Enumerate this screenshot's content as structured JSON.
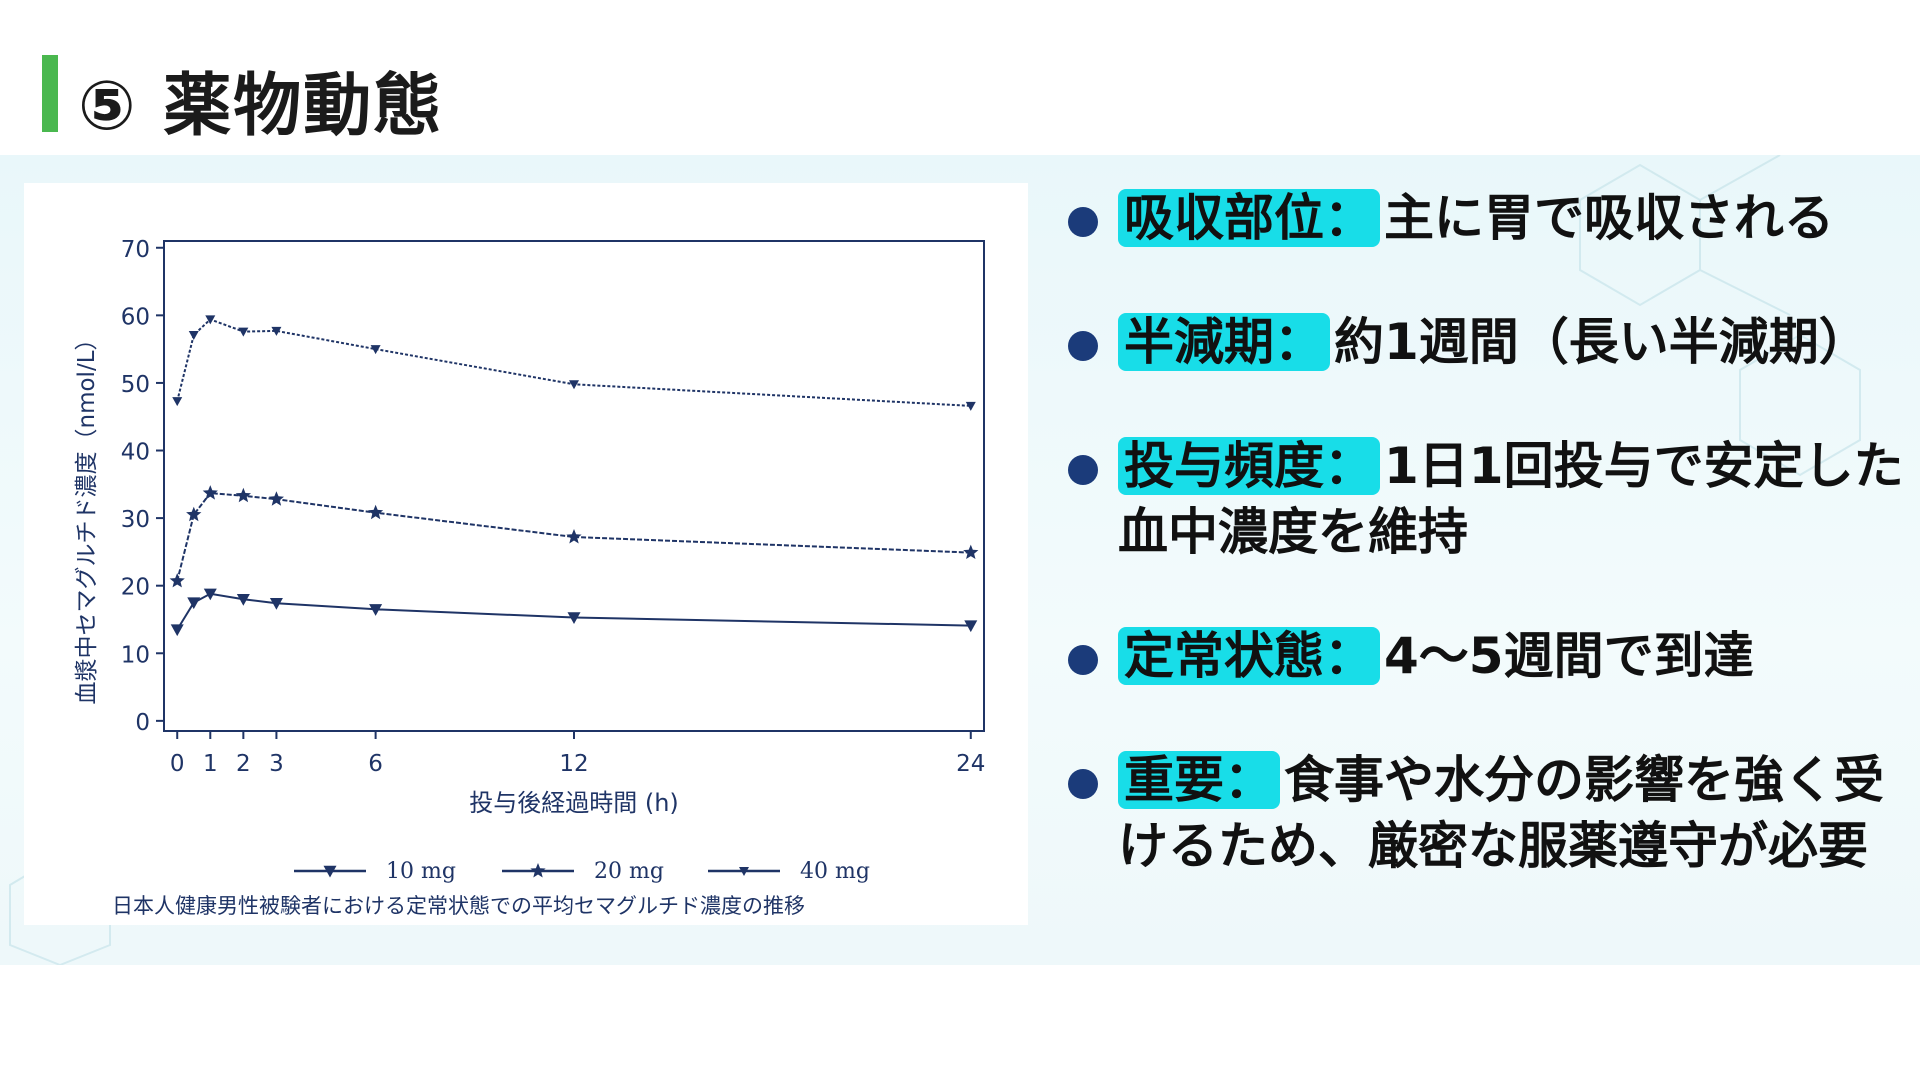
{
  "page": {
    "title": "⑤ 薬物動態"
  },
  "bullets": [
    {
      "label": "吸収部位：",
      "text": "主に胃で吸収される",
      "text2": ""
    },
    {
      "label": "半減期：",
      "text": "約1週間（長い半減期）",
      "text2": ""
    },
    {
      "label": "投与頻度：",
      "text": "1日1回投与で安定した",
      "text2": "血中濃度を維持"
    },
    {
      "label": "定常状態：",
      "text": "4～5週間で到達",
      "text2": ""
    },
    {
      "label": "重要：",
      "text": "食事や水分の影響を強く受",
      "text2": "けるため、厳密な服薬遵守が必要"
    }
  ],
  "colors": {
    "accent_bar": "#4ab84f",
    "tag_bg": "#18dde8",
    "bullet_dot": "#1b3b7a",
    "chart_line": "#1f3466",
    "axis_text": "#1f3466"
  },
  "chart_data": {
    "type": "line",
    "xlabel": "投与後経過時間 (h)",
    "ylabel": "血漿中セマグルチド濃度（nmol/L）",
    "caption": "日本人健康男性被験者における定常状態での平均セマグルチド濃度の推移",
    "x": [
      0,
      0.5,
      1,
      2,
      3,
      6,
      12,
      24
    ],
    "x_ticks": [
      0,
      1,
      2,
      3,
      6,
      12,
      24
    ],
    "y_ticks": [
      0,
      10,
      20,
      30,
      40,
      50,
      60,
      70
    ],
    "xlim": [
      -0.4,
      24.4
    ],
    "ylim": [
      -1.5,
      71
    ],
    "legend_position": "bottom",
    "series": [
      {
        "name": "10 mg",
        "marker": "triangle-down",
        "values": [
          13.5,
          17.5,
          18.8,
          18.0,
          17.4,
          16.5,
          15.3,
          14.1
        ]
      },
      {
        "name": "20 mg",
        "marker": "star",
        "values": [
          20.7,
          30.5,
          33.7,
          33.3,
          32.8,
          30.8,
          27.2,
          24.9
        ]
      },
      {
        "name": "40 mg",
        "marker": "triangle-down-small",
        "values": [
          47.3,
          57.1,
          59.4,
          57.6,
          57.7,
          55.0,
          49.8,
          46.6
        ]
      }
    ]
  }
}
